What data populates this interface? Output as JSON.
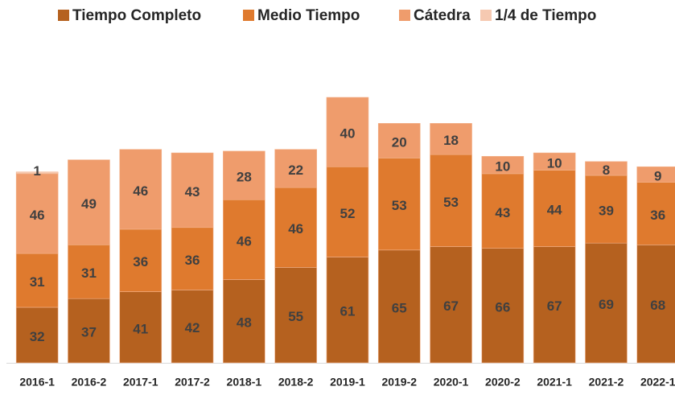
{
  "chart_data": {
    "type": "stacked_bar",
    "categories": [
      "2016-1",
      "2016-2",
      "2017-1",
      "2017-2",
      "2018-1",
      "2018-2",
      "2019-1",
      "2019-2",
      "2020-1",
      "2020-2",
      "2021-1",
      "2021-2",
      "2022-1"
    ],
    "series": [
      {
        "name": "Tiempo Completo",
        "color": "#b5611f",
        "values": [
          32,
          37,
          41,
          42,
          48,
          55,
          61,
          65,
          67,
          66,
          67,
          69,
          68
        ]
      },
      {
        "name": "Medio Tiempo",
        "color": "#df7a2e",
        "values": [
          31,
          31,
          36,
          36,
          46,
          46,
          52,
          53,
          53,
          43,
          44,
          39,
          36
        ]
      },
      {
        "name": "Cátedra",
        "color": "#ef9c6c",
        "values": [
          46,
          49,
          46,
          43,
          28,
          22,
          40,
          20,
          18,
          10,
          10,
          8,
          9
        ]
      },
      {
        "name": "1/4 de Tiempo",
        "color": "#f6c9b1",
        "values": [
          1,
          null,
          null,
          null,
          null,
          null,
          null,
          null,
          null,
          null,
          null,
          null,
          null
        ]
      }
    ],
    "legend": "top"
  }
}
